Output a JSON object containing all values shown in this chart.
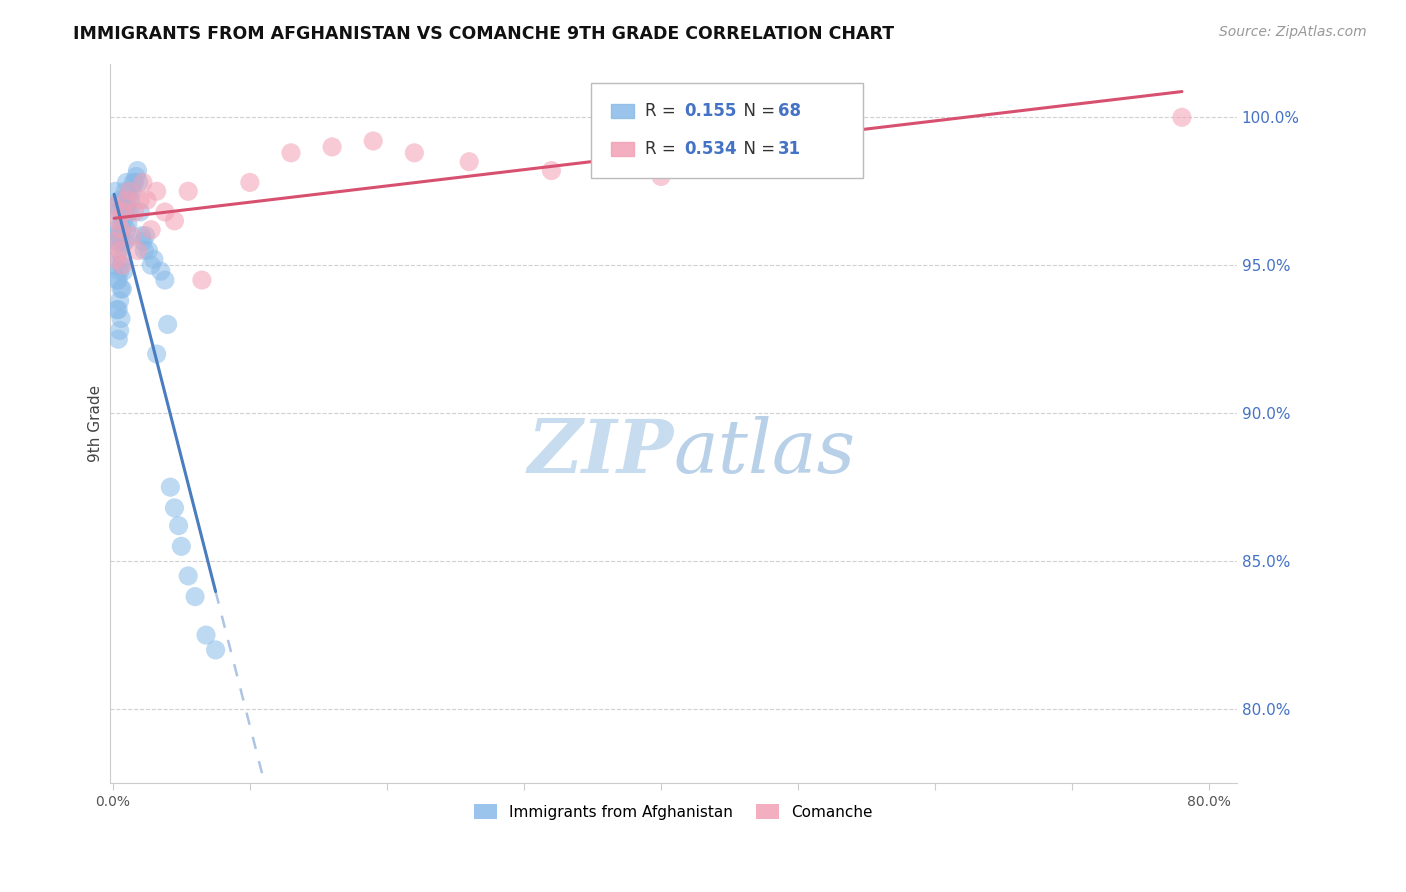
{
  "title": "IMMIGRANTS FROM AFGHANISTAN VS COMANCHE 9TH GRADE CORRELATION CHART",
  "source": "Source: ZipAtlas.com",
  "ylabel": "9th Grade",
  "ytick_labels": [
    "80.0%",
    "85.0%",
    "90.0%",
    "95.0%",
    "100.0%"
  ],
  "ytick_values": [
    0.8,
    0.85,
    0.9,
    0.95,
    1.0
  ],
  "xlim": [
    -0.002,
    0.82
  ],
  "ylim": [
    0.775,
    1.018
  ],
  "legend_label1": "Immigrants from Afghanistan",
  "legend_label2": "Comanche",
  "r1": 0.155,
  "n1": 68,
  "r2": 0.534,
  "n2": 31,
  "color_blue": "#89BAE8",
  "color_pink": "#F2A0B5",
  "color_blue_line": "#4A7CC0",
  "color_pink_line": "#D85070",
  "color_blue_text": "#4472C4",
  "color_axes": "#cccccc",
  "blue_x": [
    0.001,
    0.001,
    0.002,
    0.002,
    0.003,
    0.003,
    0.003,
    0.003,
    0.004,
    0.004,
    0.004,
    0.004,
    0.004,
    0.005,
    0.005,
    0.005,
    0.005,
    0.005,
    0.006,
    0.006,
    0.006,
    0.006,
    0.006,
    0.007,
    0.007,
    0.007,
    0.007,
    0.008,
    0.008,
    0.008,
    0.008,
    0.009,
    0.009,
    0.009,
    0.01,
    0.01,
    0.01,
    0.011,
    0.011,
    0.012,
    0.012,
    0.013,
    0.014,
    0.015,
    0.016,
    0.017,
    0.018,
    0.019,
    0.02,
    0.021,
    0.022,
    0.023,
    0.024,
    0.026,
    0.028,
    0.03,
    0.032,
    0.035,
    0.038,
    0.04,
    0.042,
    0.045,
    0.048,
    0.05,
    0.055,
    0.06,
    0.068,
    0.075
  ],
  "blue_y": [
    0.96,
    0.95,
    0.975,
    0.962,
    0.97,
    0.958,
    0.945,
    0.935,
    0.968,
    0.955,
    0.945,
    0.935,
    0.925,
    0.972,
    0.96,
    0.948,
    0.938,
    0.928,
    0.965,
    0.958,
    0.95,
    0.942,
    0.932,
    0.97,
    0.962,
    0.952,
    0.942,
    0.972,
    0.965,
    0.958,
    0.948,
    0.975,
    0.968,
    0.958,
    0.978,
    0.97,
    0.962,
    0.972,
    0.964,
    0.975,
    0.968,
    0.972,
    0.975,
    0.978,
    0.978,
    0.98,
    0.982,
    0.978,
    0.968,
    0.96,
    0.958,
    0.955,
    0.96,
    0.955,
    0.95,
    0.952,
    0.92,
    0.948,
    0.945,
    0.93,
    0.875,
    0.868,
    0.862,
    0.855,
    0.845,
    0.838,
    0.825,
    0.82
  ],
  "pink_x": [
    0.001,
    0.002,
    0.003,
    0.004,
    0.005,
    0.006,
    0.007,
    0.008,
    0.01,
    0.012,
    0.014,
    0.016,
    0.018,
    0.02,
    0.022,
    0.025,
    0.028,
    0.032,
    0.038,
    0.045,
    0.055,
    0.065,
    0.1,
    0.13,
    0.16,
    0.19,
    0.22,
    0.26,
    0.32,
    0.4,
    0.78
  ],
  "pink_y": [
    0.97,
    0.958,
    0.952,
    0.965,
    0.955,
    0.962,
    0.95,
    0.968,
    0.972,
    0.975,
    0.96,
    0.968,
    0.955,
    0.972,
    0.978,
    0.972,
    0.962,
    0.975,
    0.968,
    0.965,
    0.975,
    0.945,
    0.978,
    0.988,
    0.99,
    0.992,
    0.988,
    0.985,
    0.982,
    0.98,
    1.0
  ]
}
